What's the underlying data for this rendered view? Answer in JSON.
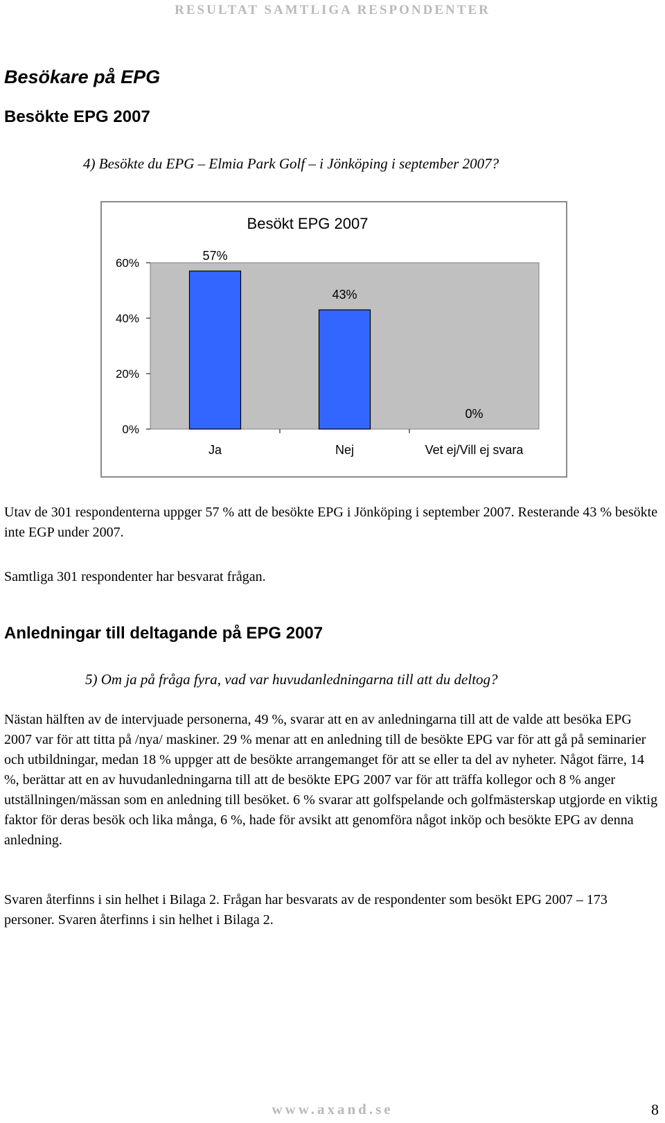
{
  "header": {
    "running_title": "RESULTAT SAMTLIGA RESPONDENTER"
  },
  "section1": {
    "heading": "Besökare på EPG",
    "subheading": "Besökte EPG 2007",
    "question": "4) Besökte du EPG – Elmia Park Golf – i Jönköping i september 2007?",
    "paragraph1": "Utav de 301 respondenterna uppger 57 % att de besökte EPG i Jönköping i september 2007. Resterande 43 % besökte inte EGP under 2007.",
    "paragraph2": "Samtliga 301 respondenter har besvarat frågan."
  },
  "section2": {
    "subheading": "Anledningar till deltagande på EPG 2007",
    "question": "5) Om ja på fråga fyra, vad var huvudanledningarna till att du deltog?",
    "paragraph1": "Nästan hälften av de intervjuade personerna, 49 %, svarar att en av anledningarna till att de valde att besöka EPG 2007 var för att titta på /nya/ maskiner. 29 % menar att en anledning till de besökte EPG var för att gå på seminarier och utbildningar, medan 18 % uppger att de besökte arrangemanget för att se eller ta del av nyheter. Något färre, 14 %, berättar att en av huvudanledningarna till att de besökte EPG 2007 var för att träffa kollegor och 8 % anger utställningen/mässan som en anledning till besöket. 6 % svarar att golfspelande och golfmästerskap utgjorde en viktig faktor för deras besök och lika många, 6 %, hade för avsikt att genomföra något inköp och besökte EPG av denna anledning.",
    "paragraph2": "Svaren återfinns i sin helhet i Bilaga 2. Frågan har besvarats av de respondenter som besökt EPG 2007 – 173 personer. Svaren återfinns i sin helhet i Bilaga 2."
  },
  "chart_data": {
    "type": "bar",
    "title": "Besökt EPG 2007",
    "categories": [
      "Ja",
      "Nej",
      "Vet ej/Vill ej svara"
    ],
    "values": [
      57,
      43,
      0
    ],
    "data_labels": [
      "57%",
      "43%",
      "0%"
    ],
    "y_ticks": [
      "0%",
      "20%",
      "40%",
      "60%"
    ],
    "y_tick_values": [
      0,
      20,
      40,
      60
    ],
    "ylim": [
      0,
      60
    ],
    "grid": false,
    "legend": "none",
    "colors": {
      "bar": "#3366ff",
      "plot_background": "#c0c0c0"
    }
  },
  "footer": {
    "url": "www.axand.se",
    "page_number": "8"
  }
}
